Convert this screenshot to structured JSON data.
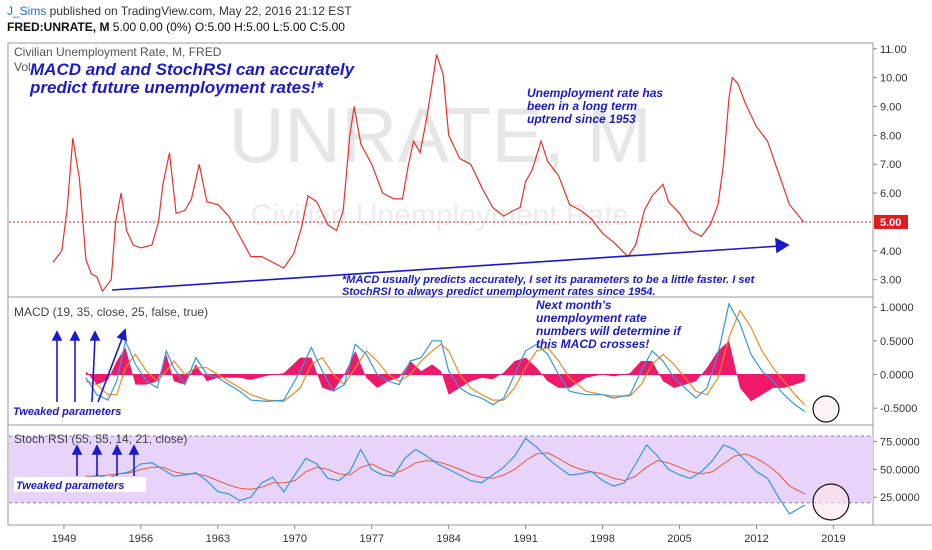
{
  "header": {
    "user": "J_Sims",
    "published": " published on TradingView.com, May 22, 2016 21:12 EST",
    "symbol": "FRED:UNRATE, M",
    "quote": " 5.00 0.00 (0%) O:5.00 H:5.00 L:5.00 C:5.00"
  },
  "colors": {
    "price_line": "#e8302a",
    "macd_line": "#3399dd",
    "signal_line": "#f08a24",
    "histogram": "#f0186a",
    "stoch_k": "#3399dd",
    "stoch_d": "#e85a3a",
    "stoch_band": "#e8d4fb",
    "annotation": "#1a1acc",
    "last_price_badge": "#e01c1c"
  },
  "chart_data": [
    {
      "type": "line",
      "title": "Civilian Unemployment Rate, M, FRED",
      "subtitle": "Vol",
      "watermark": "UNRATE, M",
      "watermark_sub": "Civilian Unemployment Rate",
      "y_ticks": [
        "11.00",
        "10.00",
        "9.00",
        "8.00",
        "7.00",
        "6.00",
        "4.00",
        "3.00"
      ],
      "ylim": [
        2.4,
        11.2
      ],
      "last_value_label": "5.00",
      "last_value": 5.0,
      "x": [
        1948.0,
        1948.8,
        1949.3,
        1949.8,
        1950.4,
        1951.0,
        1951.5,
        1952.0,
        1952.5,
        1953.3,
        1953.7,
        1954.2,
        1954.7,
        1955.3,
        1956.0,
        1957.0,
        1957.6,
        1958.0,
        1958.6,
        1959.2,
        1960.0,
        1960.6,
        1961.3,
        1962.0,
        1963.0,
        1964.0,
        1965.0,
        1966.0,
        1967.0,
        1968.0,
        1969.0,
        1969.9,
        1970.6,
        1971.2,
        1972.0,
        1973.0,
        1973.8,
        1974.4,
        1975.0,
        1975.4,
        1976.0,
        1977.0,
        1978.0,
        1979.0,
        1979.8,
        1980.3,
        1980.8,
        1981.4,
        1982.0,
        1982.5,
        1982.9,
        1983.5,
        1984.0,
        1985.0,
        1986.0,
        1987.0,
        1988.0,
        1989.0,
        1989.9,
        1990.5,
        1991.0,
        1991.6,
        1992.4,
        1993.0,
        1994.0,
        1995.0,
        1996.0,
        1997.0,
        1998.0,
        1999.0,
        2000.3,
        2001.0,
        2001.8,
        2002.5,
        2003.5,
        2004.0,
        2005.0,
        2006.0,
        2007.0,
        2007.8,
        2008.5,
        2009.0,
        2009.5,
        2009.8,
        2010.3,
        2011.0,
        2012.0,
        2013.0,
        2014.0,
        2015.0,
        2016.3
      ],
      "y": [
        3.6,
        4.0,
        5.5,
        7.9,
        6.5,
        3.7,
        3.2,
        3.1,
        2.6,
        3.0,
        5.0,
        6.0,
        4.7,
        4.2,
        4.1,
        4.2,
        5.0,
        6.3,
        7.4,
        5.3,
        5.4,
        5.8,
        7.0,
        5.7,
        5.6,
        5.2,
        4.5,
        3.8,
        3.8,
        3.6,
        3.4,
        3.9,
        4.8,
        5.9,
        5.7,
        4.9,
        4.7,
        5.4,
        8.0,
        9.0,
        7.7,
        7.0,
        6.0,
        5.8,
        5.8,
        6.9,
        7.8,
        7.4,
        8.6,
        9.8,
        10.8,
        10.1,
        8.0,
        7.2,
        7.0,
        6.2,
        5.5,
        5.2,
        5.4,
        5.5,
        6.4,
        6.8,
        7.8,
        7.1,
        6.6,
        5.6,
        5.4,
        5.1,
        4.6,
        4.3,
        3.8,
        4.2,
        5.4,
        5.9,
        6.3,
        5.7,
        5.3,
        4.7,
        4.5,
        4.9,
        5.6,
        7.0,
        9.3,
        10.0,
        9.8,
        9.1,
        8.3,
        7.8,
        6.7,
        5.6,
        5.0
      ]
    },
    {
      "type": "line",
      "title": "MACD (19, 35, close, 25, false, true)",
      "y_ticks": [
        "1.0000",
        "0.5000",
        "0.0000",
        "-0.5000"
      ],
      "ylim": [
        -0.75,
        1.15
      ],
      "x": [
        1951.0,
        1952.0,
        1953.0,
        1953.8,
        1954.6,
        1955.5,
        1956.5,
        1957.5,
        1958.3,
        1959.0,
        1960.0,
        1961.0,
        1962.0,
        1963.0,
        1964.0,
        1965.0,
        1966.0,
        1967.5,
        1969.0,
        1970.5,
        1971.5,
        1972.5,
        1973.5,
        1974.5,
        1975.5,
        1976.5,
        1977.5,
        1978.5,
        1979.5,
        1980.5,
        1981.5,
        1982.5,
        1983.3,
        1984.0,
        1985.0,
        1986.0,
        1987.0,
        1988.0,
        1989.0,
        1990.0,
        1991.0,
        1992.0,
        1993.0,
        1994.0,
        1995.0,
        1996.5,
        1998.0,
        1999.0,
        2000.5,
        2001.5,
        2002.5,
        2003.5,
        2004.5,
        2005.5,
        2006.5,
        2007.5,
        2008.5,
        2009.5,
        2010.5,
        2011.5,
        2012.5,
        2013.5,
        2014.5,
        2015.5,
        2016.4
      ],
      "macd": [
        -0.05,
        -0.3,
        -0.38,
        -0.1,
        0.5,
        0.15,
        -0.1,
        -0.2,
        0.35,
        0.1,
        -0.15,
        0.25,
        0.0,
        -0.05,
        -0.15,
        -0.25,
        -0.38,
        -0.4,
        -0.38,
        0.05,
        0.4,
        0.05,
        -0.25,
        -0.15,
        0.45,
        0.3,
        0.0,
        -0.1,
        -0.15,
        0.2,
        0.25,
        0.5,
        0.5,
        0.05,
        -0.2,
        -0.3,
        -0.35,
        -0.45,
        -0.35,
        0.0,
        0.35,
        0.45,
        0.3,
        0.0,
        -0.25,
        -0.3,
        -0.3,
        -0.35,
        -0.3,
        0.05,
        0.35,
        0.2,
        -0.05,
        -0.2,
        -0.35,
        -0.2,
        0.3,
        1.05,
        0.75,
        0.3,
        0.05,
        -0.1,
        -0.3,
        -0.45,
        -0.55
      ],
      "signal": [
        -0.1,
        -0.15,
        -0.3,
        -0.3,
        0.1,
        0.3,
        0.05,
        -0.1,
        0.05,
        0.2,
        0.0,
        0.1,
        0.1,
        0.0,
        -0.1,
        -0.2,
        -0.3,
        -0.38,
        -0.4,
        -0.2,
        0.15,
        0.25,
        0.0,
        -0.15,
        0.1,
        0.35,
        0.2,
        0.0,
        -0.1,
        0.0,
        0.2,
        0.35,
        0.45,
        0.35,
        0.0,
        -0.2,
        -0.3,
        -0.38,
        -0.38,
        -0.2,
        0.1,
        0.35,
        0.4,
        0.2,
        -0.05,
        -0.25,
        -0.3,
        -0.32,
        -0.32,
        -0.15,
        0.15,
        0.3,
        0.15,
        -0.05,
        -0.25,
        -0.3,
        -0.05,
        0.55,
        0.95,
        0.7,
        0.35,
        0.1,
        -0.1,
        -0.3,
        -0.45
      ],
      "histogram": [
        0.05,
        -0.15,
        -0.08,
        0.2,
        0.4,
        -0.15,
        -0.15,
        -0.1,
        0.3,
        -0.1,
        -0.15,
        0.15,
        -0.1,
        -0.05,
        -0.05,
        -0.05,
        -0.08,
        -0.02,
        0.02,
        0.25,
        0.25,
        -0.2,
        -0.25,
        0.0,
        0.35,
        -0.05,
        -0.2,
        -0.1,
        -0.05,
        0.2,
        0.05,
        0.15,
        0.05,
        -0.3,
        -0.2,
        -0.1,
        -0.05,
        -0.07,
        0.03,
        0.2,
        0.25,
        0.1,
        -0.1,
        -0.2,
        -0.2,
        -0.05,
        0.0,
        -0.03,
        0.02,
        0.2,
        0.2,
        -0.1,
        -0.2,
        -0.15,
        -0.1,
        0.1,
        0.35,
        0.5,
        -0.2,
        -0.4,
        -0.3,
        -0.2,
        -0.2,
        -0.15,
        -0.1
      ]
    },
    {
      "type": "line",
      "title": "Stoch RSI (55, 55, 14, 21, close)",
      "y_ticks": [
        "75.0000",
        "50.0000",
        "25.0000"
      ],
      "ylim": [
        0,
        90
      ],
      "band": [
        20,
        80
      ],
      "x": [
        1951.0,
        1952.0,
        1953.0,
        1954.0,
        1955.0,
        1956.0,
        1957.0,
        1958.0,
        1959.0,
        1960.0,
        1961.0,
        1962.0,
        1963.0,
        1964.0,
        1965.0,
        1966.0,
        1967.0,
        1968.0,
        1969.0,
        1970.0,
        1971.0,
        1972.0,
        1973.0,
        1974.0,
        1975.0,
        1976.0,
        1977.0,
        1978.0,
        1979.0,
        1980.0,
        1981.0,
        1982.0,
        1983.0,
        1984.0,
        1985.0,
        1986.0,
        1987.0,
        1988.0,
        1989.0,
        1990.0,
        1991.0,
        1992.0,
        1993.0,
        1994.0,
        1995.0,
        1996.0,
        1997.0,
        1998.0,
        1999.0,
        2000.0,
        2001.0,
        2002.0,
        2003.0,
        2004.0,
        2005.0,
        2006.0,
        2007.0,
        2008.0,
        2009.0,
        2010.0,
        2011.0,
        2012.0,
        2013.0,
        2014.0,
        2015.0,
        2016.4
      ],
      "k": [
        40,
        45,
        42,
        46,
        48,
        55,
        56,
        50,
        44,
        45,
        47,
        40,
        30,
        28,
        22,
        25,
        38,
        43,
        30,
        45,
        60,
        55,
        42,
        40,
        48,
        68,
        50,
        45,
        44,
        60,
        68,
        62,
        55,
        50,
        45,
        40,
        38,
        45,
        52,
        62,
        78,
        70,
        60,
        52,
        45,
        46,
        48,
        40,
        35,
        38,
        55,
        72,
        62,
        50,
        45,
        42,
        48,
        58,
        72,
        68,
        58,
        48,
        42,
        25,
        10,
        18
      ],
      "d": [
        44,
        44,
        45,
        46,
        47,
        50,
        52,
        52,
        48,
        46,
        46,
        44,
        40,
        36,
        33,
        32,
        34,
        38,
        38,
        40,
        48,
        52,
        50,
        46,
        45,
        52,
        55,
        50,
        46,
        50,
        56,
        58,
        57,
        54,
        50,
        46,
        43,
        42,
        45,
        50,
        58,
        64,
        65,
        60,
        54,
        50,
        48,
        46,
        42,
        40,
        44,
        52,
        58,
        56,
        52,
        48,
        46,
        48,
        55,
        62,
        64,
        60,
        54,
        46,
        35,
        28
      ]
    }
  ],
  "x_axis_ticks": [
    "1949",
    "1956",
    "1963",
    "1970",
    "1977",
    "1984",
    "1991",
    "1998",
    "2005",
    "2012",
    "2019"
  ],
  "annotations": {
    "headline_1": "MACD and and StochRSI can accurately",
    "headline_2": "predict future unemployment rates!*",
    "trend_1": "Unemployment rate has",
    "trend_2": "been in a long term",
    "trend_3": "uptrend since 1953",
    "footnote_1": "*MACD usually predicts accurately, I set its parameters to be a little faster. I set",
    "footnote_2": "StochRSI to always predict unemployment rates since 1954.",
    "next_1": "Next month's",
    "next_2": "unemployment rate",
    "next_3": "numbers will determine if",
    "next_4": "this MACD crosses!",
    "tweaked_macd": "Tweaked parameters",
    "tweaked_stoch": "Tweaked parameters"
  }
}
